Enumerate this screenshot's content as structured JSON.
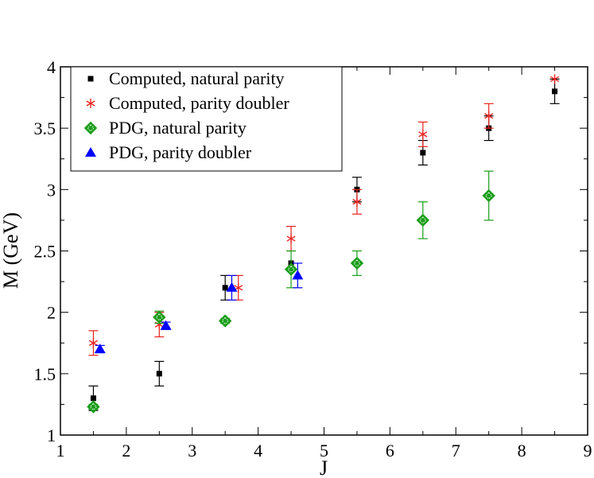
{
  "chart_data": {
    "type": "scatter",
    "xlabel": "J",
    "ylabel": "M (GeV)",
    "xlim": [
      1,
      9
    ],
    "ylim": [
      1,
      4
    ],
    "xticks": [
      1,
      2,
      3,
      4,
      5,
      6,
      7,
      8,
      9
    ],
    "yticks": [
      1,
      1.5,
      2,
      2.5,
      3,
      3.5,
      4
    ],
    "xtick_labels": [
      "1",
      "2",
      "3",
      "4",
      "5",
      "6",
      "7",
      "8",
      "9"
    ],
    "ytick_labels": [
      "1",
      "1.5",
      "2",
      "2.5",
      "3",
      "3.5",
      "4"
    ],
    "grid": false,
    "legend_position": "top-left",
    "series": [
      {
        "name": "Computed, natural parity",
        "marker": "square",
        "color": "#000000",
        "points": [
          {
            "x": 1.5,
            "y": 1.3,
            "err": 0.1
          },
          {
            "x": 2.5,
            "y": 1.5,
            "err": 0.1
          },
          {
            "x": 3.5,
            "y": 2.2,
            "err": 0.1
          },
          {
            "x": 4.5,
            "y": 2.4,
            "err": 0.0
          },
          {
            "x": 5.5,
            "y": 3.0,
            "err": 0.1
          },
          {
            "x": 6.5,
            "y": 3.3,
            "err": 0.1
          },
          {
            "x": 7.5,
            "y": 3.5,
            "err": 0.1
          },
          {
            "x": 8.5,
            "y": 3.8,
            "err": 0.1
          }
        ]
      },
      {
        "name": "Computed, parity doubler",
        "marker": "star",
        "color": "#e8231f",
        "points": [
          {
            "x": 1.5,
            "y": 1.75,
            "err": 0.1
          },
          {
            "x": 2.5,
            "y": 1.9,
            "err": 0.1
          },
          {
            "x": 3.7,
            "y": 2.2,
            "err": 0.1
          },
          {
            "x": 4.5,
            "y": 2.6,
            "err": 0.1
          },
          {
            "x": 5.5,
            "y": 2.9,
            "err": 0.1
          },
          {
            "x": 6.5,
            "y": 3.45,
            "err": 0.1
          },
          {
            "x": 7.5,
            "y": 3.6,
            "err": 0.1
          },
          {
            "x": 8.5,
            "y": 3.9,
            "err": 0.0
          }
        ]
      },
      {
        "name": "PDG, natural parity",
        "marker": "diamond",
        "color": "#1a9e1a",
        "points": [
          {
            "x": 1.5,
            "y": 1.23,
            "err": 0.02
          },
          {
            "x": 2.5,
            "y": 1.96,
            "err": 0.05
          },
          {
            "x": 3.5,
            "y": 1.93,
            "err": 0.02
          },
          {
            "x": 4.5,
            "y": 2.35,
            "err": 0.15
          },
          {
            "x": 5.5,
            "y": 2.4,
            "err": 0.1
          },
          {
            "x": 6.5,
            "y": 2.75,
            "err": 0.15
          },
          {
            "x": 7.5,
            "y": 2.95,
            "err": 0.2
          }
        ]
      },
      {
        "name": "PDG, parity doubler",
        "marker": "triangle",
        "color": "#0000ff",
        "points": [
          {
            "x": 1.6,
            "y": 1.7,
            "err": 0.03
          },
          {
            "x": 2.6,
            "y": 1.89,
            "err": 0.03
          },
          {
            "x": 3.6,
            "y": 2.2,
            "err": 0.1
          },
          {
            "x": 4.6,
            "y": 2.3,
            "err": 0.1
          }
        ]
      }
    ]
  }
}
